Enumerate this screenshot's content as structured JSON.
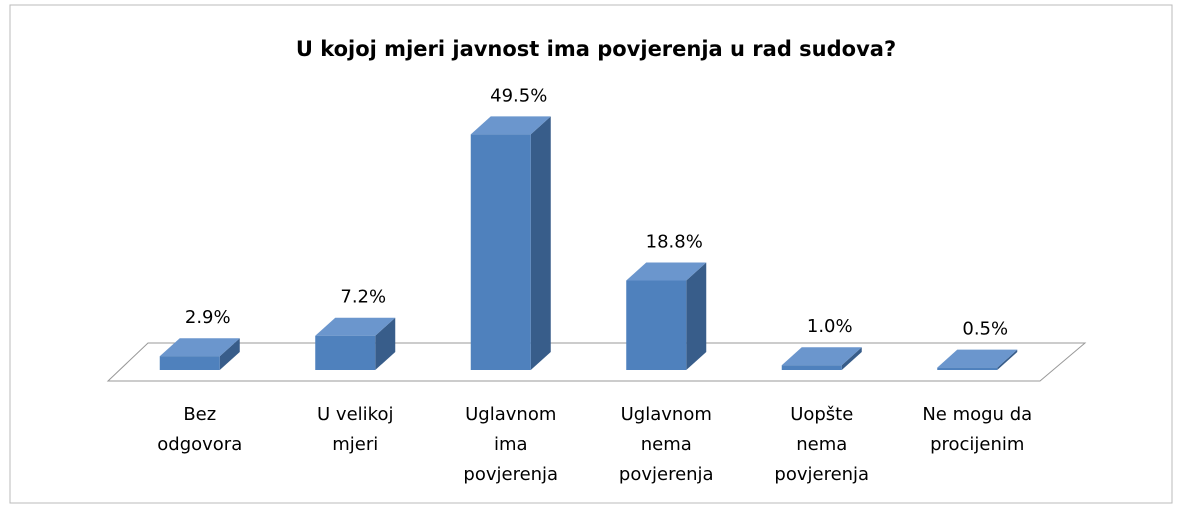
{
  "chart_data": {
    "type": "bar3d",
    "title": "U kojoj mjeri javnost ima povjerenja u rad sudova?",
    "categories": [
      "Bez odgovora",
      "U velikoj mjeri",
      "Uglavnom ima povjerenja",
      "Uglavnom nema povjerenja",
      "Uopšte nema povjerenja",
      "Ne mogu da procijenim"
    ],
    "values": [
      2.9,
      7.2,
      49.5,
      18.8,
      1.0,
      0.5
    ],
    "value_labels": [
      "2.9%",
      "7.2%",
      "49.5%",
      "18.8%",
      "1.0%",
      "0.5%"
    ],
    "color": "#4f81bd",
    "ylim": [
      0,
      50
    ]
  }
}
